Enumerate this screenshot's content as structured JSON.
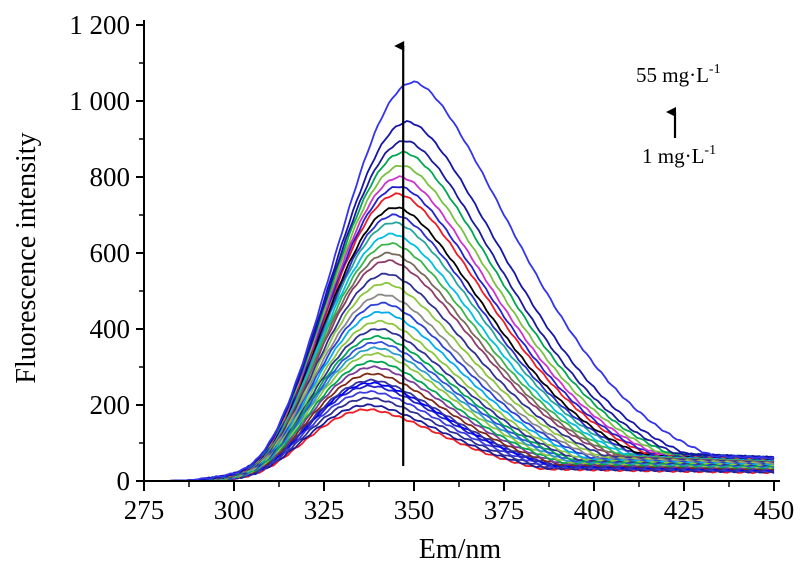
{
  "chart_data": {
    "type": "line",
    "xlabel": "Em/nm",
    "ylabel": "Fluorescence intensity",
    "xlim": [
      275,
      450
    ],
    "ylim": [
      0,
      1200
    ],
    "x_ticks": [
      "275",
      "300",
      "325",
      "350",
      "375",
      "400",
      "425",
      "450"
    ],
    "y_ticks": [
      "0",
      "200",
      "400",
      "600",
      "800",
      "1 000",
      "1 200"
    ],
    "x": [
      275,
      280,
      285,
      290,
      295,
      300,
      305,
      310,
      315,
      320,
      325,
      330,
      335,
      340,
      345,
      350,
      355,
      360,
      365,
      370,
      375,
      380,
      385,
      390,
      395,
      400,
      405,
      410,
      415,
      420,
      425,
      430,
      435,
      440,
      445,
      450
    ],
    "series_peaks": [
      188,
      200,
      218,
      235,
      250,
      258,
      265,
      282,
      300,
      315,
      335,
      350,
      365,
      380,
      400,
      420,
      445,
      468,
      490,
      520,
      545,
      580,
      600,
      625,
      650,
      680,
      700,
      720,
      755,
      775,
      800,
      830,
      865,
      895,
      945,
      1050
    ],
    "series_colors": [
      "#ee1c24",
      "#1a1a9a",
      "#2e3192",
      "#3b3be0",
      "#2020c8",
      "#0000ff",
      "#333399",
      "#7f2a17",
      "#7c3b9a",
      "#00a651",
      "#8dc63f",
      "#2aa0c8",
      "#3050e0",
      "#00a651",
      "#2e3192",
      "#8dc63f",
      "#00aeef",
      "#2b3fd6",
      "#8a8a8a",
      "#8cc63f",
      "#2e3192",
      "#8c3c6a",
      "#7a6a5a",
      "#39b54a",
      "#00c0e0",
      "#26a69a",
      "#2b2bd0",
      "#000000",
      "#ed1c24",
      "#2020d0",
      "#cc33cc",
      "#7ac143",
      "#00a651",
      "#1a1a9a",
      "#1515aa",
      "#3333ee"
    ],
    "annotations": {
      "top": "55 mg·L",
      "top_sup": "-1",
      "bottom": "1 mg·L",
      "bottom_sup": "-1"
    },
    "arrow_x": 347
  }
}
